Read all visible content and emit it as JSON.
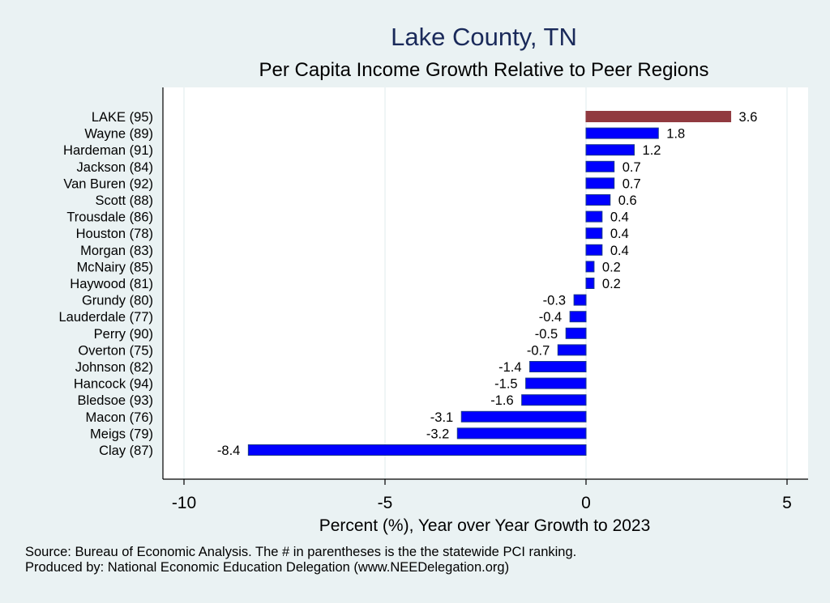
{
  "chart_data": {
    "type": "bar",
    "orientation": "horizontal",
    "title": "Lake County, TN",
    "subtitle": "Per Capita Income Growth Relative to Peer Regions",
    "xlabel": "Percent (%), Year over Year Growth to 2023",
    "ylabel": "",
    "xlim": [
      -10.5,
      5.5
    ],
    "xticks": [
      -10,
      -5,
      0,
      5
    ],
    "xtick_labels": [
      "-10",
      "-5",
      "0",
      "5"
    ],
    "grid": true,
    "categories": [
      "LAKE (95)",
      "Wayne (89)",
      "Hardeman (91)",
      "Jackson (84)",
      "Van Buren (92)",
      "Scott (88)",
      "Trousdale (86)",
      "Houston (78)",
      "Morgan (83)",
      "McNairy (85)",
      "Haywood (81)",
      "Grundy (80)",
      "Lauderdale (77)",
      "Perry (90)",
      "Overton (75)",
      "Johnson (82)",
      "Hancock (94)",
      "Bledsoe (93)",
      "Macon (76)",
      "Meigs (79)",
      "Clay (87)"
    ],
    "values": [
      3.6,
      1.8,
      1.2,
      0.7,
      0.7,
      0.6,
      0.4,
      0.4,
      0.4,
      0.2,
      0.2,
      -0.3,
      -0.4,
      -0.5,
      -0.7,
      -1.4,
      -1.5,
      -1.6,
      -3.1,
      -3.2,
      -8.4
    ],
    "value_labels": [
      "3.6",
      "1.8",
      "1.2",
      "0.7",
      "0.7",
      "0.6",
      "0.4",
      "0.4",
      "0.4",
      "0.2",
      "0.2",
      "-0.3",
      "-0.4",
      "-0.5",
      "-0.7",
      "-1.4",
      "-1.5",
      "-1.6",
      "-3.1",
      "-3.2",
      "-8.4"
    ],
    "highlight_index": 0,
    "colors": {
      "highlight": "#913a40",
      "default": "#0000ff",
      "bar_edge": "#1a3a8a",
      "title": "#1a2a5a",
      "background": "#eaf2f3",
      "plot_bg": "#ffffff",
      "grid": "#eaf2f3"
    }
  },
  "footer": {
    "source": "Source: Bureau of Economic Analysis. The # in parentheses is the the statewide PCI ranking.",
    "produced_by": "Produced by: National Economic Education Delegation (www.NEEDelegation.org)"
  }
}
